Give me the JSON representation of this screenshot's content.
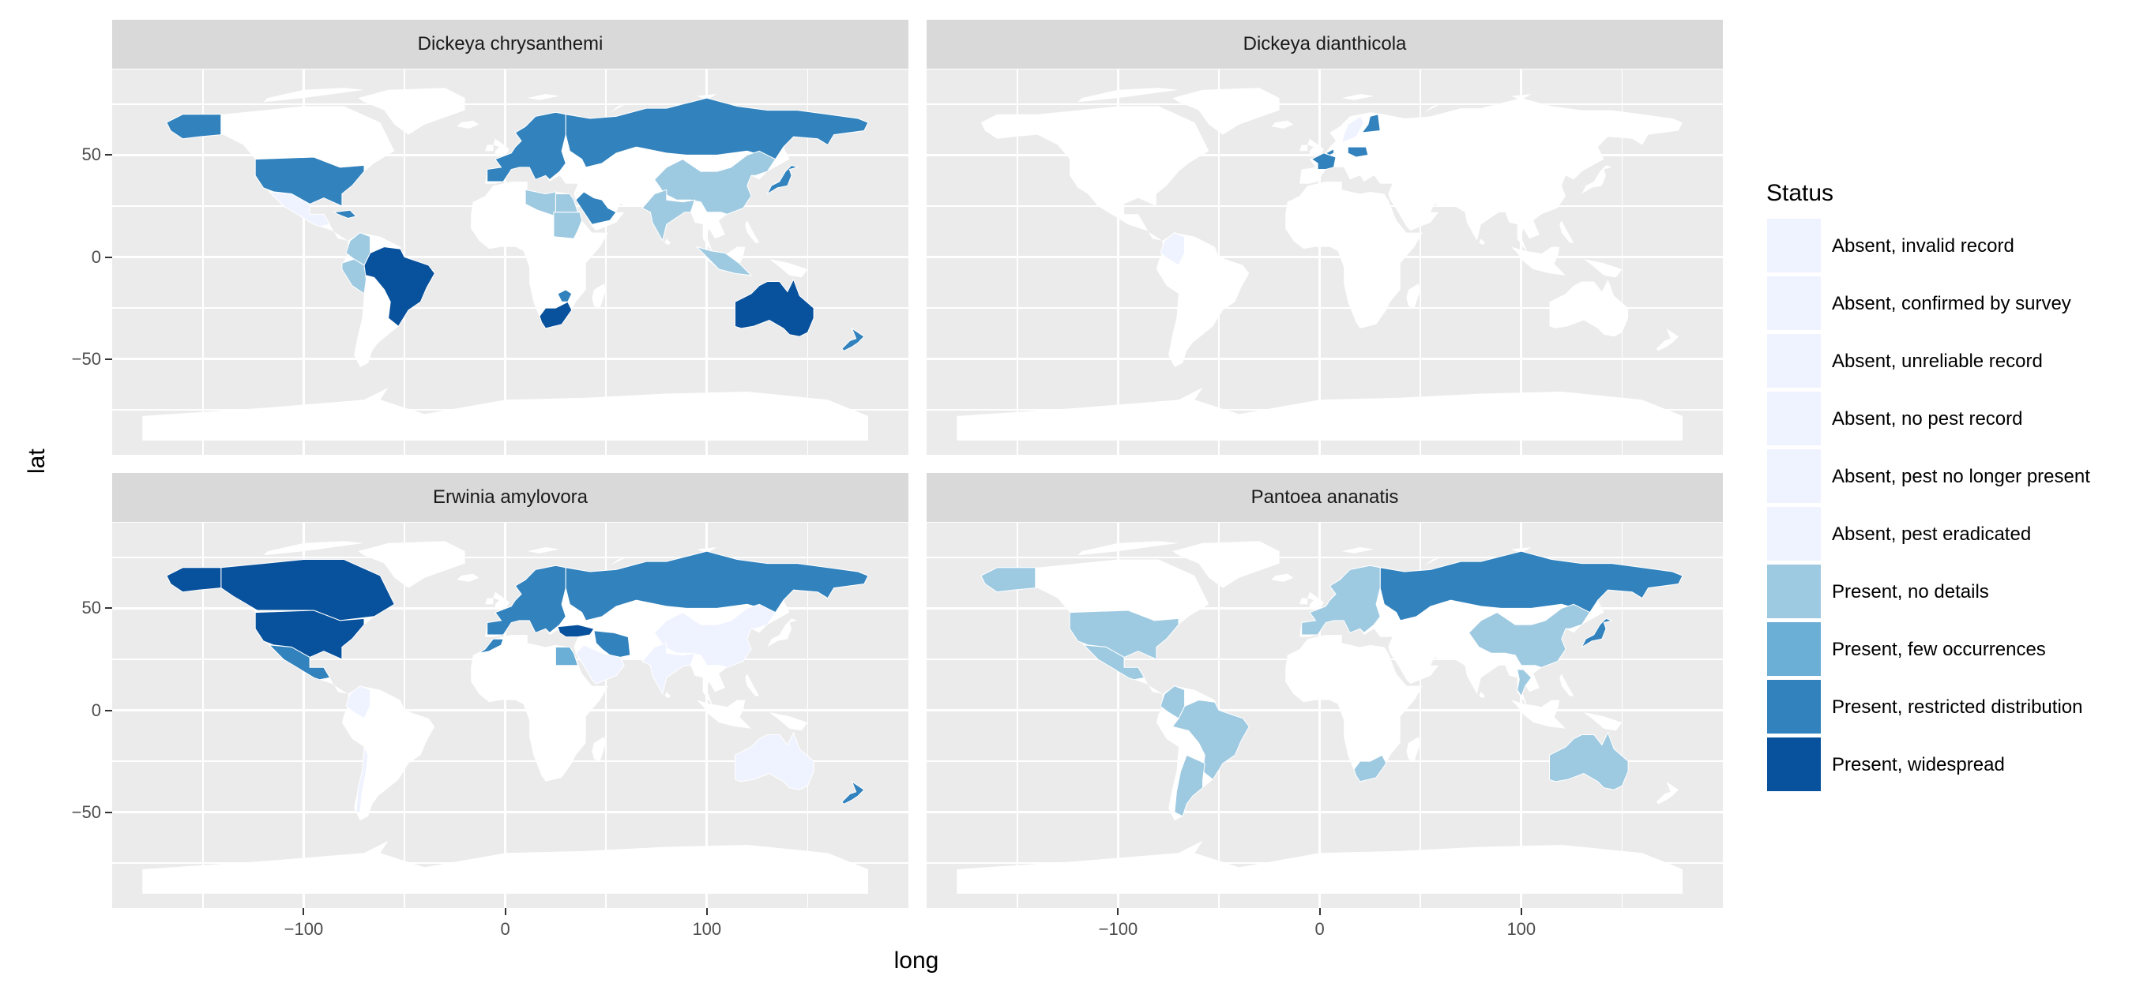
{
  "chart_data": {
    "type": "choropleth",
    "title": "",
    "xlabel": "long",
    "ylabel": "lat",
    "xlim": [
      -195,
      200
    ],
    "ylim": [
      -97,
      92
    ],
    "x_ticks": [
      -100,
      0,
      100
    ],
    "y_ticks": [
      -50,
      0,
      50
    ],
    "grid": true,
    "legend_title": "Status",
    "legend_position": "right",
    "categories": [
      {
        "label": "Absent, invalid record",
        "color": "#eff3ff"
      },
      {
        "label": "Absent, confirmed by survey",
        "color": "#eff3ff"
      },
      {
        "label": "Absent, unreliable record",
        "color": "#eff3ff"
      },
      {
        "label": "Absent, no pest record",
        "color": "#eff3ff"
      },
      {
        "label": "Absent, pest no longer present",
        "color": "#eff3ff"
      },
      {
        "label": "Absent, pest eradicated",
        "color": "#eff3ff"
      },
      {
        "label": "Present, no details",
        "color": "#9ecae1"
      },
      {
        "label": "Present, few occurrences",
        "color": "#6baed6"
      },
      {
        "label": "Present, restricted distribution",
        "color": "#3182bd"
      },
      {
        "label": "Present, widespread",
        "color": "#08519c"
      }
    ],
    "panels": [
      {
        "name": "Dickeya chrysanthemi",
        "regions": [
          {
            "region": "Alaska",
            "status": "Present, restricted distribution"
          },
          {
            "region": "United States",
            "status": "Present, restricted distribution"
          },
          {
            "region": "Mexico",
            "status": "Absent, no pest record"
          },
          {
            "region": "Caribbean",
            "status": "Present, restricted distribution"
          },
          {
            "region": "Brazil",
            "status": "Present, widespread"
          },
          {
            "region": "Colombia",
            "status": "Present, no details"
          },
          {
            "region": "Peru",
            "status": "Present, no details"
          },
          {
            "region": "Europe",
            "status": "Present, restricted distribution"
          },
          {
            "region": "Russia",
            "status": "Present, restricted distribution"
          },
          {
            "region": "Japan",
            "status": "Present, restricted distribution"
          },
          {
            "region": "China",
            "status": "Present, no details"
          },
          {
            "region": "India",
            "status": "Present, no details"
          },
          {
            "region": "Saudi Arabia",
            "status": "Present, restricted distribution"
          },
          {
            "region": "Egypt",
            "status": "Present, no details"
          },
          {
            "region": "Libya",
            "status": "Present, no details"
          },
          {
            "region": "Sudan",
            "status": "Present, no details"
          },
          {
            "region": "South Africa",
            "status": "Present, widespread"
          },
          {
            "region": "Zimbabwe",
            "status": "Present, restricted distribution"
          },
          {
            "region": "Australia",
            "status": "Present, widespread"
          },
          {
            "region": "New Zealand",
            "status": "Present, restricted distribution"
          },
          {
            "region": "Indonesia",
            "status": "Present, no details"
          }
        ]
      },
      {
        "name": "Dickeya dianthicola",
        "regions": [
          {
            "region": "France",
            "status": "Present, restricted distribution"
          },
          {
            "region": "Netherlands",
            "status": "Present, restricted distribution"
          },
          {
            "region": "Poland",
            "status": "Present, restricted distribution"
          },
          {
            "region": "Finland",
            "status": "Present, restricted distribution"
          },
          {
            "region": "Sweden",
            "status": "Absent, no pest record"
          },
          {
            "region": "Colombia",
            "status": "Absent, no pest record"
          }
        ]
      },
      {
        "name": "Erwinia amylovora",
        "regions": [
          {
            "region": "Canada",
            "status": "Present, widespread"
          },
          {
            "region": "Alaska",
            "status": "Present, widespread"
          },
          {
            "region": "United States",
            "status": "Present, widespread"
          },
          {
            "region": "Mexico",
            "status": "Present, restricted distribution"
          },
          {
            "region": "Colombia",
            "status": "Absent, no pest record"
          },
          {
            "region": "Chile",
            "status": "Absent, no pest record"
          },
          {
            "region": "Europe",
            "status": "Present, restricted distribution"
          },
          {
            "region": "Russia",
            "status": "Present, restricted distribution"
          },
          {
            "region": "Turkey",
            "status": "Present, widespread"
          },
          {
            "region": "Iran",
            "status": "Present, restricted distribution"
          },
          {
            "region": "Egypt",
            "status": "Present, few occurrences"
          },
          {
            "region": "Morocco",
            "status": "Present, restricted distribution"
          },
          {
            "region": "Saudi Arabia",
            "status": "Present, restricted distribution"
          },
          {
            "region": "China",
            "status": "Absent, no pest record"
          },
          {
            "region": "India",
            "status": "Absent, no pest record"
          },
          {
            "region": "Arabian Peninsula",
            "status": "Absent, no pest record"
          },
          {
            "region": "Australia",
            "status": "Absent, no pest record"
          },
          {
            "region": "New Zealand",
            "status": "Present, restricted distribution"
          }
        ]
      },
      {
        "name": "Pantoea ananatis",
        "regions": [
          {
            "region": "Alaska",
            "status": "Present, no details"
          },
          {
            "region": "United States",
            "status": "Present, no details"
          },
          {
            "region": "Mexico",
            "status": "Present, no details"
          },
          {
            "region": "Brazil",
            "status": "Present, no details"
          },
          {
            "region": "Colombia",
            "status": "Present, no details"
          },
          {
            "region": "Argentina",
            "status": "Present, no details"
          },
          {
            "region": "Russia",
            "status": "Present, restricted distribution"
          },
          {
            "region": "Japan",
            "status": "Present, restricted distribution"
          },
          {
            "region": "China",
            "status": "Present, no details"
          },
          {
            "region": "South Africa",
            "status": "Present, no details"
          },
          {
            "region": "Australia",
            "status": "Present, no details"
          },
          {
            "region": "Europe",
            "status": "Present, no details"
          },
          {
            "region": "Thailand",
            "status": "Present, no details"
          }
        ]
      }
    ]
  }
}
